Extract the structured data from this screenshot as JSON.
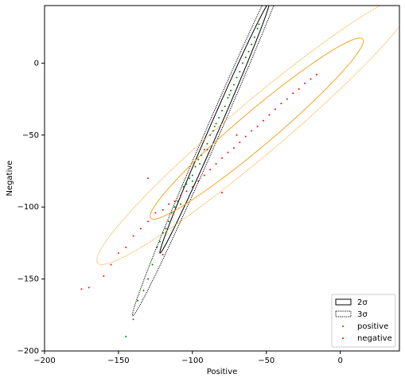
{
  "chart_data": {
    "type": "scatter",
    "xlabel": "Positive",
    "ylabel": "Negative",
    "xlim": [
      -200,
      40
    ],
    "ylim": [
      -200,
      40
    ],
    "xticks": [
      {
        "value": -200,
        "label": "−200"
      },
      {
        "value": -150,
        "label": "−150"
      },
      {
        "value": -100,
        "label": "−100"
      },
      {
        "value": -50,
        "label": "−50"
      },
      0
    ],
    "yticks": [
      {
        "value": -200,
        "label": "−200"
      },
      {
        "value": -150,
        "label": "−150"
      },
      {
        "value": -100,
        "label": "−100"
      },
      {
        "value": -50,
        "label": "−50"
      },
      0
    ],
    "legend_position": "lower right",
    "ellipse_legend": [
      {
        "name": "2σ",
        "style": "solid"
      },
      {
        "name": "3σ",
        "style": "dotted"
      }
    ],
    "ellipses": [
      {
        "color": "#000000",
        "style": "solid",
        "center": [
          -85,
          -45
        ],
        "semi_axes": [
          94.5,
          3.2
        ],
        "angle": 67
      },
      {
        "color": "#000000",
        "style": "dotted",
        "center": [
          -85,
          -45
        ],
        "semi_axes": [
          141.75,
          4.8
        ],
        "angle": 67
      },
      {
        "color": "#f5a623",
        "style": "solid",
        "center": [
          -56.5,
          -45.5
        ],
        "semi_axes": [
          95,
          12
        ],
        "angle": 41
      },
      {
        "color": "#f5a623",
        "style": "dotted",
        "center": [
          -56.5,
          -45.5
        ],
        "semi_axes": [
          142.5,
          18
        ],
        "angle": 41
      }
    ],
    "series": [
      {
        "name": "positive",
        "color": "#008000",
        "x": [
          -145,
          -140,
          -137,
          -133,
          -130,
          -127,
          -124,
          -122,
          -120,
          -118,
          -116,
          -114,
          -112,
          -110,
          -108,
          -106,
          -104,
          -102,
          -100,
          -98,
          -96,
          -94,
          -92,
          -90,
          -88,
          -86,
          -84,
          -82,
          -80,
          -78,
          -76,
          -74,
          -72,
          -70,
          -68,
          -66,
          -64,
          -62,
          -60,
          -58,
          -56,
          -55,
          -100,
          -95,
          -85,
          -75
        ],
        "values": [
          -190,
          -178,
          -165,
          -158,
          -150,
          -140,
          -128,
          -124,
          -118,
          -115,
          -110,
          -104,
          -100,
          -96,
          -98,
          -86,
          -84,
          -80,
          -78,
          -72,
          -67,
          -64,
          -60,
          -56,
          -50,
          -47,
          -42,
          -38,
          -33,
          -30,
          -24,
          -19,
          -15,
          -10,
          -6,
          0,
          4,
          8,
          13,
          18,
          24,
          27,
          -82,
          -70,
          -44,
          -22
        ]
      },
      {
        "name": "negative",
        "color": "#ff0000",
        "x": [
          -175,
          -170,
          -160,
          -155,
          -150,
          -145,
          -140,
          -135,
          -130,
          -125,
          -120,
          -116,
          -112,
          -108,
          -104,
          -100,
          -96,
          -92,
          -88,
          -84,
          -80,
          -76,
          -72,
          -68,
          -64,
          -60,
          -56,
          -52,
          -48,
          -44,
          -40,
          -36,
          -32,
          -28,
          -24,
          -20,
          -16,
          -90,
          -70,
          -120,
          -80,
          -130
        ],
        "values": [
          -157,
          -156,
          -148,
          -140,
          -132,
          -128,
          -120,
          -115,
          -110,
          -104,
          -102,
          -98,
          -96,
          -92,
          -89,
          -86,
          -82,
          -78,
          -74,
          -70,
          -66,
          -62,
          -59,
          -55,
          -51,
          -47,
          -44,
          -40,
          -36,
          -32,
          -28,
          -25,
          -21,
          -18,
          -14,
          -11,
          -8,
          -60,
          -50,
          -133,
          -90,
          -80
        ]
      }
    ]
  }
}
